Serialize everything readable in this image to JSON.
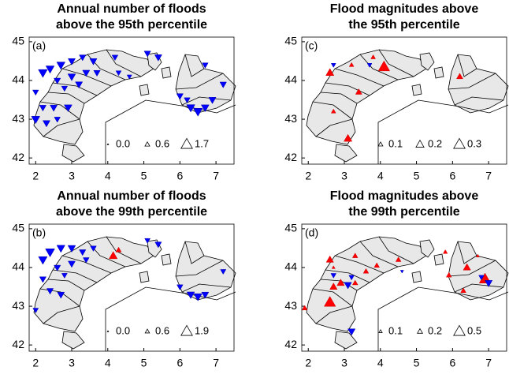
{
  "chart_data": [
    {
      "type": "scatter",
      "title": [
        "Annual number of floods",
        "above the 95th percentile"
      ],
      "panel": "(a)",
      "xlim": [
        1.82,
        7.5
      ],
      "ylim": [
        41.84,
        45.12
      ],
      "xticks": [
        2,
        3,
        4,
        5,
        6,
        7
      ],
      "yticks": [
        42,
        43,
        44,
        45
      ],
      "legend": [
        {
          "value": 0,
          "label": "0.0"
        },
        0.6,
        1.7
      ],
      "markers": {
        "lon": [
          2.0,
          2.3,
          2.6,
          2.2,
          2.5,
          2.9,
          2.0,
          2.2,
          2.4,
          2.7,
          3.0,
          3.3,
          3.6,
          4.2,
          2.6,
          3.0,
          3.4,
          3.7,
          3.2,
          2.8,
          4.3,
          4.6,
          5.1,
          5.4,
          6.7,
          7.2,
          6.0,
          6.3,
          6.5,
          6.7,
          6.9,
          6.2
        ],
        "lat": [
          43.0,
          42.9,
          43.0,
          43.3,
          43.3,
          43.3,
          43.7,
          44.2,
          44.3,
          44.4,
          44.5,
          44.6,
          44.5,
          44.6,
          44.0,
          44.1,
          44.2,
          44.2,
          43.9,
          43.8,
          44.2,
          44.1,
          44.7,
          44.6,
          44.4,
          43.9,
          43.6,
          43.3,
          43.2,
          43.3,
          43.5,
          43.5
        ],
        "values": [
          -1.2,
          -1.0,
          -0.8,
          -0.9,
          -1.0,
          -1.1,
          -0.8,
          -1.3,
          -1.2,
          -1.2,
          -1.0,
          -0.9,
          -1.0,
          -0.8,
          -0.9,
          -1.1,
          -1.0,
          -0.9,
          -1.0,
          -0.8,
          -0.7,
          -0.6,
          -0.9,
          -1.0,
          -0.8,
          -0.9,
          -0.9,
          -1.2,
          -1.3,
          -1.1,
          -1.0,
          -0.8
        ]
      }
    },
    {
      "type": "scatter",
      "title": [
        "Flood magnitudes above",
        "the 95th percentile"
      ],
      "panel": "(c)",
      "xlim": [
        1.82,
        7.5
      ],
      "ylim": [
        41.84,
        45.12
      ],
      "xticks": [
        2,
        3,
        4,
        5,
        6,
        7
      ],
      "yticks": [
        42,
        43,
        44,
        45
      ],
      "legend": [
        0.1,
        0.2,
        0.3
      ],
      "markers": {
        "lon": [
          2.6,
          2.7,
          3.4,
          3.2,
          3.7,
          4.1,
          3.1,
          6.2,
          3.8,
          2.7
        ],
        "lat": [
          44.2,
          43.2,
          43.7,
          44.4,
          44.4,
          44.35,
          42.5,
          44.1,
          44.6,
          44.4
        ],
        "values": [
          0.2,
          0.1,
          0.15,
          0.1,
          -0.1,
          0.3,
          0.2,
          0.15,
          0.1,
          -0.1
        ]
      }
    },
    {
      "type": "scatter",
      "title": [
        "Annual number of floods",
        "above the 99th percentile"
      ],
      "panel": "(b)",
      "xlim": [
        1.82,
        7.5
      ],
      "ylim": [
        41.84,
        45.12
      ],
      "xticks": [
        2,
        3,
        4,
        5,
        6,
        7
      ],
      "yticks": [
        42,
        43,
        44,
        45
      ],
      "legend": [
        {
          "value": 0,
          "label": "0.0"
        },
        0.6,
        1.9
      ],
      "markers": {
        "lon": [
          2.0,
          2.4,
          2.7,
          2.2,
          2.4,
          2.7,
          3.0,
          3.3,
          3.6,
          2.6,
          3.0,
          3.4,
          2.8,
          2.2,
          5.1,
          5.4,
          6.0,
          6.3,
          6.5,
          6.7,
          7.2,
          4.15,
          4.3
        ],
        "lat": [
          42.9,
          43.4,
          43.3,
          44.2,
          44.4,
          44.5,
          44.5,
          44.4,
          44.5,
          44.0,
          44.1,
          44.2,
          43.8,
          43.7,
          44.7,
          44.6,
          43.5,
          43.3,
          43.25,
          43.3,
          43.9,
          44.3,
          44.45
        ],
        "values": [
          -0.8,
          -1.0,
          -1.1,
          -1.4,
          -1.5,
          -1.3,
          -1.2,
          -1.0,
          -0.9,
          -1.0,
          -1.1,
          -0.9,
          -0.8,
          -1.0,
          -0.8,
          -1.0,
          -0.9,
          -1.2,
          -1.3,
          -1.1,
          -0.8,
          1.3,
          0.8
        ]
      }
    },
    {
      "type": "scatter",
      "title": [
        "Flood magnitudes above",
        "the 99th percentile"
      ],
      "panel": "(d)",
      "xlim": [
        1.82,
        7.5
      ],
      "ylim": [
        41.84,
        45.12
      ],
      "xticks": [
        2,
        3,
        4,
        5,
        6,
        7
      ],
      "yticks": [
        42,
        43,
        44,
        45
      ],
      "legend": [
        0.1,
        0.2,
        0.5
      ],
      "markers": {
        "lon": [
          1.9,
          2.6,
          2.7,
          2.9,
          3.1,
          3.3,
          3.2,
          3.6,
          3.9,
          4.5,
          2.7,
          2.7,
          2.6,
          3.3,
          5.8,
          5.9,
          6.4,
          6.9,
          7.0,
          6.8,
          6.3,
          6.7,
          3.2,
          4.6
        ],
        "lat": [
          42.95,
          43.1,
          43.5,
          43.6,
          43.55,
          43.6,
          43.75,
          43.9,
          44.05,
          44.2,
          44.0,
          43.8,
          44.2,
          44.3,
          44.4,
          43.8,
          44.0,
          43.7,
          43.6,
          43.75,
          43.4,
          44.3,
          42.35,
          43.9
        ],
        "values": [
          0.2,
          0.5,
          0.3,
          0.3,
          -0.3,
          0.2,
          -0.2,
          0.2,
          0.2,
          0.2,
          0.1,
          -0.2,
          0.3,
          0.2,
          0.15,
          0.2,
          0.3,
          0.5,
          -0.3,
          -0.2,
          0.2,
          0.1,
          -0.3,
          -0.1
        ]
      }
    }
  ]
}
